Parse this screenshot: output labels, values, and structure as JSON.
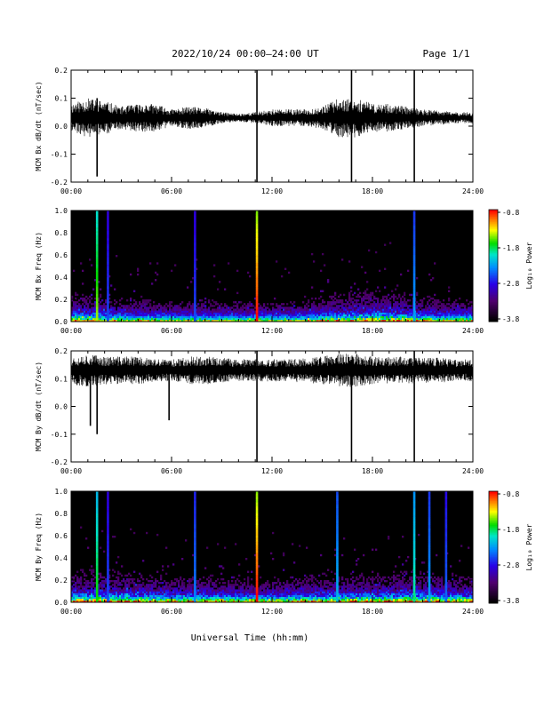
{
  "header": {
    "title": "2022/10/24  00:00–24:00 UT",
    "page": "Page 1/1"
  },
  "x_axis": {
    "label": "Universal Time (hh:mm)",
    "ticks": [
      "00:00",
      "06:00",
      "12:00",
      "18:00",
      "24:00"
    ]
  },
  "colorbar": {
    "label": "Log₁₀ Power",
    "tick_labels": [
      "-0.8",
      "-1.8",
      "-2.8",
      "-3.8"
    ],
    "range": [
      -3.8,
      -0.8
    ]
  },
  "chart_data": [
    {
      "type": "line",
      "ylabel": "MCM Bx dB/dt (nT/sec)",
      "xlim": [
        0,
        24
      ],
      "ylim": [
        -0.2,
        0.2
      ],
      "yticks": [
        -0.2,
        -0.1,
        0.0,
        0.1,
        0.2
      ],
      "ytick_labels": [
        "-0.2",
        "-0.1",
        "0.0",
        "0.1",
        "0.2"
      ],
      "baseline": 0.03,
      "activity_envelope": [
        {
          "x": 0,
          "amp": 0.05
        },
        {
          "x": 1,
          "amp": 0.07
        },
        {
          "x": 2,
          "amp": 0.06
        },
        {
          "x": 3,
          "amp": 0.04
        },
        {
          "x": 4,
          "amp": 0.05
        },
        {
          "x": 5,
          "amp": 0.05
        },
        {
          "x": 6,
          "amp": 0.03
        },
        {
          "x": 7,
          "amp": 0.04
        },
        {
          "x": 8,
          "amp": 0.035
        },
        {
          "x": 9,
          "amp": 0.02
        },
        {
          "x": 10,
          "amp": 0.015
        },
        {
          "x": 11,
          "amp": 0.02
        },
        {
          "x": 12,
          "amp": 0.03
        },
        {
          "x": 13,
          "amp": 0.03
        },
        {
          "x": 14,
          "amp": 0.03
        },
        {
          "x": 15,
          "amp": 0.04
        },
        {
          "x": 16,
          "amp": 0.07
        },
        {
          "x": 17,
          "amp": 0.07
        },
        {
          "x": 18,
          "amp": 0.05
        },
        {
          "x": 19,
          "amp": 0.05
        },
        {
          "x": 20,
          "amp": 0.04
        },
        {
          "x": 21,
          "amp": 0.03
        },
        {
          "x": 22,
          "amp": 0.025
        },
        {
          "x": 23,
          "amp": 0.02
        },
        {
          "x": 24,
          "amp": 0.02
        }
      ],
      "spikes": [
        {
          "x": 1.55,
          "y_min": -0.18,
          "y_max": 0.1
        },
        {
          "x": 11.1,
          "y_min": -0.2,
          "y_max": 0.2
        },
        {
          "x": 16.75,
          "y_min": -0.2,
          "y_max": 0.2
        },
        {
          "x": 20.5,
          "y_min": -0.2,
          "y_max": 0.2
        }
      ]
    },
    {
      "type": "heatmap",
      "ylabel": "MCM Bx Freq (Hz)",
      "xlim": [
        0,
        24
      ],
      "ylim": [
        0,
        1.0
      ],
      "yticks": [
        0,
        0.2,
        0.4,
        0.6,
        0.8,
        1.0
      ],
      "ytick_labels": [
        "0.0",
        "0.2",
        "0.4",
        "0.6",
        "0.8",
        "1.0"
      ],
      "colorbar_range": [
        -3.8,
        -0.8
      ],
      "activity_envelope": [
        {
          "x": 0,
          "level": 0.45
        },
        {
          "x": 2,
          "level": 0.4
        },
        {
          "x": 4,
          "level": 0.35
        },
        {
          "x": 6,
          "level": 0.3
        },
        {
          "x": 8,
          "level": 0.3
        },
        {
          "x": 10,
          "level": 0.25
        },
        {
          "x": 12,
          "level": 0.3
        },
        {
          "x": 14,
          "level": 0.3
        },
        {
          "x": 16,
          "level": 0.45
        },
        {
          "x": 18,
          "level": 0.5
        },
        {
          "x": 20,
          "level": 0.45
        },
        {
          "x": 22,
          "level": 0.35
        },
        {
          "x": 24,
          "level": 0.35
        }
      ],
      "spikes": [
        {
          "x": 1.55,
          "power": -1.5
        },
        {
          "x": 2.2,
          "power": -2.6
        },
        {
          "x": 7.4,
          "power": -2.6
        },
        {
          "x": 11.1,
          "power": -0.8
        },
        {
          "x": 20.5,
          "power": -2.3
        }
      ]
    },
    {
      "type": "line",
      "ylabel": "MCM By dB/dt (nT/sec)",
      "xlim": [
        0,
        24
      ],
      "ylim": [
        -0.2,
        0.2
      ],
      "yticks": [
        -0.2,
        -0.1,
        0.0,
        0.1,
        0.2
      ],
      "ytick_labels": [
        "-0.2",
        "-0.1",
        "0.0",
        "0.1",
        "0.2"
      ],
      "baseline": 0.13,
      "activity_envelope": [
        {
          "x": 0,
          "amp": 0.05
        },
        {
          "x": 1,
          "amp": 0.06
        },
        {
          "x": 2,
          "amp": 0.05
        },
        {
          "x": 3,
          "amp": 0.05
        },
        {
          "x": 4,
          "amp": 0.05
        },
        {
          "x": 5,
          "amp": 0.04
        },
        {
          "x": 6,
          "amp": 0.04
        },
        {
          "x": 7,
          "amp": 0.05
        },
        {
          "x": 8,
          "amp": 0.05
        },
        {
          "x": 9,
          "amp": 0.045
        },
        {
          "x": 10,
          "amp": 0.04
        },
        {
          "x": 11,
          "amp": 0.04
        },
        {
          "x": 12,
          "amp": 0.04
        },
        {
          "x": 13,
          "amp": 0.04
        },
        {
          "x": 14,
          "amp": 0.045
        },
        {
          "x": 15,
          "amp": 0.05
        },
        {
          "x": 16,
          "amp": 0.06
        },
        {
          "x": 17,
          "amp": 0.06
        },
        {
          "x": 18,
          "amp": 0.05
        },
        {
          "x": 19,
          "amp": 0.05
        },
        {
          "x": 20,
          "amp": 0.05
        },
        {
          "x": 21,
          "amp": 0.045
        },
        {
          "x": 22,
          "amp": 0.045
        },
        {
          "x": 23,
          "amp": 0.04
        },
        {
          "x": 24,
          "amp": 0.04
        }
      ],
      "spikes": [
        {
          "x": 1.15,
          "y_min": -0.07,
          "y_max": 0.15
        },
        {
          "x": 1.55,
          "y_min": -0.1,
          "y_max": 0.16
        },
        {
          "x": 5.85,
          "y_min": -0.05,
          "y_max": 0.15
        },
        {
          "x": 11.1,
          "y_min": -0.2,
          "y_max": 0.2
        },
        {
          "x": 16.75,
          "y_min": -0.2,
          "y_max": 0.15
        },
        {
          "x": 20.5,
          "y_min": -0.2,
          "y_max": 0.2
        }
      ]
    },
    {
      "type": "heatmap",
      "ylabel": "MCM By Freq (Hz)",
      "xlim": [
        0,
        24
      ],
      "ylim": [
        0,
        1.0
      ],
      "yticks": [
        0,
        0.2,
        0.4,
        0.6,
        0.8,
        1.0
      ],
      "ytick_labels": [
        "0.0",
        "0.2",
        "0.4",
        "0.6",
        "0.8",
        "1.0"
      ],
      "colorbar_range": [
        -3.8,
        -0.8
      ],
      "activity_envelope": [
        {
          "x": 0,
          "level": 0.5
        },
        {
          "x": 2,
          "level": 0.5
        },
        {
          "x": 4,
          "level": 0.45
        },
        {
          "x": 6,
          "level": 0.4
        },
        {
          "x": 8,
          "level": 0.4
        },
        {
          "x": 10,
          "level": 0.35
        },
        {
          "x": 12,
          "level": 0.35
        },
        {
          "x": 14,
          "level": 0.4
        },
        {
          "x": 16,
          "level": 0.45
        },
        {
          "x": 18,
          "level": 0.45
        },
        {
          "x": 20,
          "level": 0.5
        },
        {
          "x": 22,
          "level": 0.45
        },
        {
          "x": 24,
          "level": 0.4
        }
      ],
      "spikes": [
        {
          "x": 1.55,
          "power": -1.7
        },
        {
          "x": 2.2,
          "power": -2.6
        },
        {
          "x": 7.4,
          "power": -2.4
        },
        {
          "x": 11.1,
          "power": -0.8
        },
        {
          "x": 15.9,
          "power": -2.2
        },
        {
          "x": 20.5,
          "power": -1.9
        },
        {
          "x": 21.4,
          "power": -2.3
        },
        {
          "x": 22.4,
          "power": -2.5
        }
      ]
    }
  ]
}
